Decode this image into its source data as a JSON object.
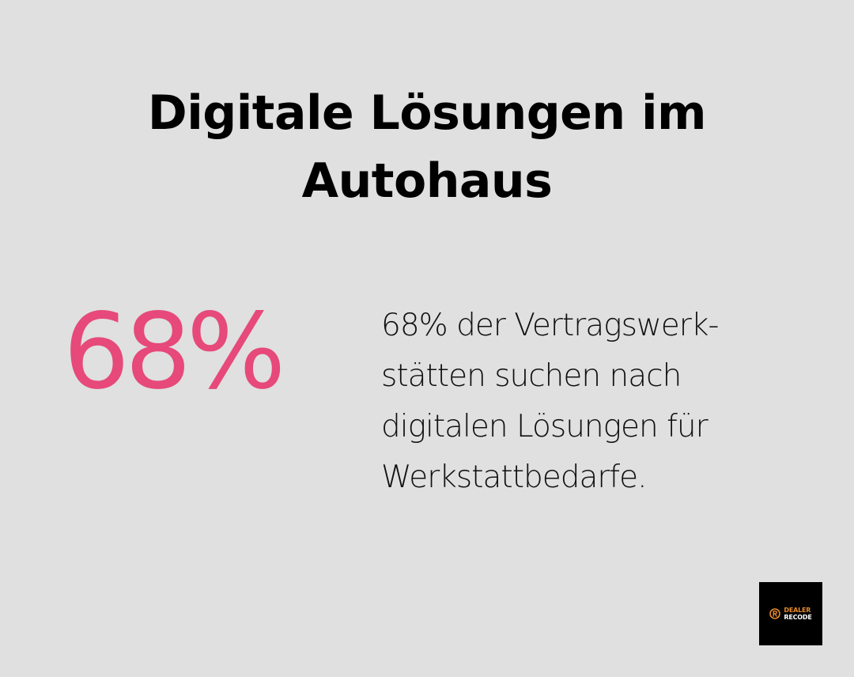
{
  "title": {
    "line1": "Digitale Lösungen im",
    "line2": "Autohaus"
  },
  "stat": {
    "value": "68%",
    "description_lines": [
      "68% der Vertragswerk-",
      "stätten suchen nach",
      "digitalen Lösungen für",
      "Werkstattbedarfe."
    ],
    "value_color": "#e6497a"
  },
  "logo": {
    "word_top": "DEALER",
    "word_bottom": "RECODE",
    "icon": "r-circle-icon",
    "accent_color": "#e98a2b",
    "background_color": "#000000"
  },
  "colors": {
    "background": "#dfe0df",
    "text": "#000000"
  }
}
